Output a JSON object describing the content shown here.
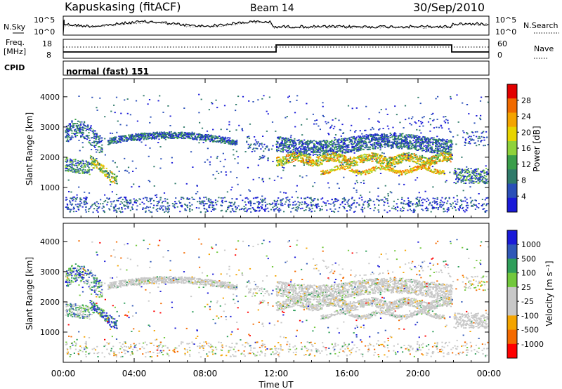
{
  "header": {
    "station": "Kapuskasing (fitACF)",
    "beam": "Beam 14",
    "date": "30/Sep/2010"
  },
  "top_panels": {
    "noise": {
      "left_label": "N.Sky",
      "right_label": "N.Search",
      "ticks": [
        "10^5",
        "10^0"
      ]
    },
    "freq": {
      "left_label_1": "Freq.",
      "left_label_2": "[MHz]",
      "left_ticks": [
        "18",
        "8"
      ],
      "right_label": "Nave",
      "right_ticks": [
        "60",
        "0"
      ]
    },
    "cpid": {
      "label": "CPID",
      "value": "normal (fast) 151"
    }
  },
  "colors": {
    "power_scale": [
      "#1a1ad8",
      "#2a4fb8",
      "#2f7a6a",
      "#3a9e4a",
      "#8fd23a",
      "#e8d400",
      "#f4a400",
      "#f06a00",
      "#e20000"
    ],
    "velocity_scale": [
      "#ff0000",
      "#f46a00",
      "#f4a400",
      "#c8c8c8",
      "#c8c8c8",
      "#72c83c",
      "#2f9e5a",
      "#3058b8",
      "#1a1ad8"
    ]
  },
  "chart_data": [
    {
      "type": "heatmap",
      "name": "power",
      "ylabel": "Slant Range [km]",
      "yticks": [
        "4000",
        "3000",
        "2000",
        "1000"
      ],
      "ylim": [
        0,
        4600
      ],
      "colorbar_label": "Power [dB]",
      "colorbar_ticks": [
        "28",
        "24",
        "20",
        "16",
        "12",
        "8",
        "4"
      ],
      "colorbar_range": [
        0,
        30
      ]
    },
    {
      "type": "heatmap",
      "name": "velocity",
      "ylabel": "Slant Range [km]",
      "yticks": [
        "4000",
        "3000",
        "2000",
        "1000"
      ],
      "ylim": [
        0,
        4600
      ],
      "colorbar_label": "Velocity [m s⁻¹]",
      "colorbar_ticks": [
        "1000",
        "500",
        "100",
        "25",
        "-25",
        "-100",
        "-500",
        "-1000"
      ]
    }
  ],
  "xaxis": {
    "label": "Time UT",
    "ticks": [
      "00:00",
      "04:00",
      "08:00",
      "12:00",
      "16:00",
      "20:00",
      "00:00"
    ]
  }
}
